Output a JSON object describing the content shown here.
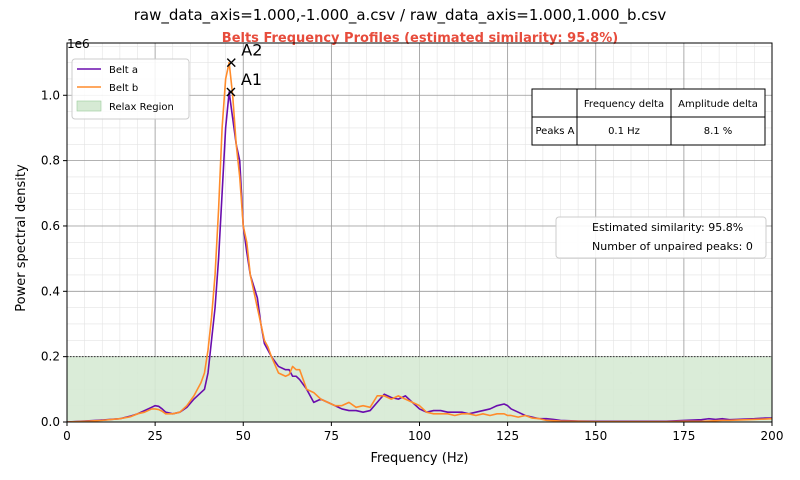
{
  "suptitle": "raw_data_axis=1.000,-1.000_a.csv / raw_data_axis=1.000,1.000_b.csv",
  "chart_data": {
    "type": "line",
    "title": "Belts Frequency Profiles (estimated similarity: 95.8%)",
    "xlabel": "Frequency (Hz)",
    "ylabel": "Power spectral density",
    "y_multiplier": "1e6",
    "xlim": [
      0,
      200
    ],
    "ylim": [
      0,
      1.16
    ],
    "x_ticks": [
      0,
      25,
      50,
      75,
      100,
      125,
      150,
      175,
      200
    ],
    "y_ticks": [
      0.0,
      0.2,
      0.4,
      0.6,
      0.8,
      1.0
    ],
    "grid": "major and minor",
    "legend_position": "top-left",
    "colors": {
      "belt_a": "#6a0dad",
      "belt_b": "#ff8c2b",
      "relax": "#d6ead4",
      "title": "#e74c3c"
    },
    "series": [
      {
        "name": "Belt a",
        "color": "#6a0dad",
        "x": [
          0,
          5,
          10,
          15,
          18,
          20,
          22,
          24,
          25,
          26,
          27,
          28,
          30,
          32,
          34,
          36,
          38,
          39,
          40,
          41,
          42,
          43,
          44,
          45,
          46,
          47,
          48,
          49,
          50,
          51,
          52,
          54,
          55,
          56,
          57,
          58,
          60,
          62,
          63,
          64,
          65,
          66,
          68,
          70,
          72,
          74,
          76,
          78,
          80,
          82,
          84,
          86,
          88,
          90,
          92,
          94,
          96,
          98,
          100,
          102,
          104,
          106,
          108,
          110,
          112,
          114,
          116,
          118,
          120,
          122,
          124,
          125,
          126,
          128,
          130,
          132,
          134,
          136,
          138,
          140,
          145,
          150,
          155,
          160,
          165,
          170,
          175,
          180,
          182,
          184,
          186,
          188,
          190,
          195,
          198,
          200
        ],
        "y": [
          0.0,
          0.003,
          0.006,
          0.01,
          0.018,
          0.025,
          0.035,
          0.045,
          0.05,
          0.048,
          0.04,
          0.03,
          0.025,
          0.03,
          0.045,
          0.07,
          0.09,
          0.1,
          0.15,
          0.25,
          0.35,
          0.5,
          0.7,
          0.9,
          1.01,
          0.93,
          0.85,
          0.8,
          0.6,
          0.52,
          0.45,
          0.38,
          0.3,
          0.24,
          0.22,
          0.2,
          0.17,
          0.16,
          0.16,
          0.14,
          0.14,
          0.13,
          0.1,
          0.06,
          0.07,
          0.06,
          0.05,
          0.04,
          0.035,
          0.035,
          0.03,
          0.035,
          0.06,
          0.085,
          0.075,
          0.07,
          0.08,
          0.06,
          0.04,
          0.03,
          0.035,
          0.035,
          0.03,
          0.03,
          0.03,
          0.025,
          0.03,
          0.035,
          0.04,
          0.05,
          0.055,
          0.05,
          0.04,
          0.03,
          0.02,
          0.015,
          0.01,
          0.01,
          0.008,
          0.005,
          0.003,
          0.002,
          0.002,
          0.002,
          0.002,
          0.002,
          0.005,
          0.007,
          0.01,
          0.008,
          0.01,
          0.007,
          0.008,
          0.01,
          0.012,
          0.012
        ]
      },
      {
        "name": "Belt b",
        "color": "#ff8c2b",
        "x": [
          0,
          5,
          10,
          15,
          18,
          20,
          22,
          24,
          25,
          26,
          27,
          28,
          30,
          32,
          34,
          36,
          38,
          39,
          40,
          41,
          42,
          43,
          44,
          45,
          46,
          47,
          48,
          49,
          50,
          51,
          52,
          54,
          55,
          56,
          57,
          58,
          60,
          62,
          63,
          64,
          65,
          66,
          68,
          70,
          72,
          74,
          76,
          78,
          80,
          82,
          84,
          86,
          88,
          90,
          92,
          94,
          96,
          98,
          100,
          102,
          104,
          106,
          108,
          110,
          112,
          114,
          116,
          118,
          120,
          122,
          124,
          125,
          126,
          128,
          130,
          132,
          134,
          136,
          138,
          140,
          145,
          150,
          155,
          160,
          165,
          170,
          175,
          180,
          182,
          184,
          186,
          188,
          190,
          195,
          198,
          200
        ],
        "y": [
          0.0,
          0.002,
          0.005,
          0.01,
          0.016,
          0.025,
          0.03,
          0.04,
          0.04,
          0.038,
          0.033,
          0.025,
          0.025,
          0.03,
          0.05,
          0.08,
          0.12,
          0.15,
          0.22,
          0.32,
          0.45,
          0.65,
          0.9,
          1.05,
          1.1,
          1.0,
          0.85,
          0.75,
          0.6,
          0.55,
          0.45,
          0.35,
          0.3,
          0.25,
          0.23,
          0.2,
          0.15,
          0.14,
          0.145,
          0.17,
          0.16,
          0.16,
          0.1,
          0.09,
          0.07,
          0.06,
          0.05,
          0.05,
          0.06,
          0.045,
          0.05,
          0.045,
          0.08,
          0.08,
          0.07,
          0.08,
          0.07,
          0.06,
          0.05,
          0.03,
          0.025,
          0.025,
          0.025,
          0.02,
          0.025,
          0.025,
          0.02,
          0.025,
          0.02,
          0.025,
          0.025,
          0.02,
          0.02,
          0.015,
          0.02,
          0.012,
          0.01,
          0.005,
          0.004,
          0.003,
          0.002,
          0.001,
          0.001,
          0.001,
          0.001,
          0.001,
          0.002,
          0.002,
          0.003,
          0.004,
          0.005,
          0.005,
          0.006,
          0.008,
          0.009,
          0.01
        ]
      }
    ],
    "relax_region": {
      "label": "Relax Region",
      "x": [
        0,
        200
      ],
      "y": [
        0,
        0.2
      ]
    },
    "peaks": [
      {
        "label": "A1",
        "x": 46.5,
        "y": 1.01
      },
      {
        "label": "A2",
        "x": 46.6,
        "y": 1.1
      }
    ],
    "peak_table": {
      "headers": [
        "",
        "Frequency delta",
        "Amplitude delta"
      ],
      "rows": [
        [
          "Peaks A",
          "0.1 Hz",
          "8.1 %"
        ]
      ]
    },
    "info_box": [
      "Estimated similarity: 95.8%",
      "Number of unpaired peaks: 0"
    ]
  }
}
